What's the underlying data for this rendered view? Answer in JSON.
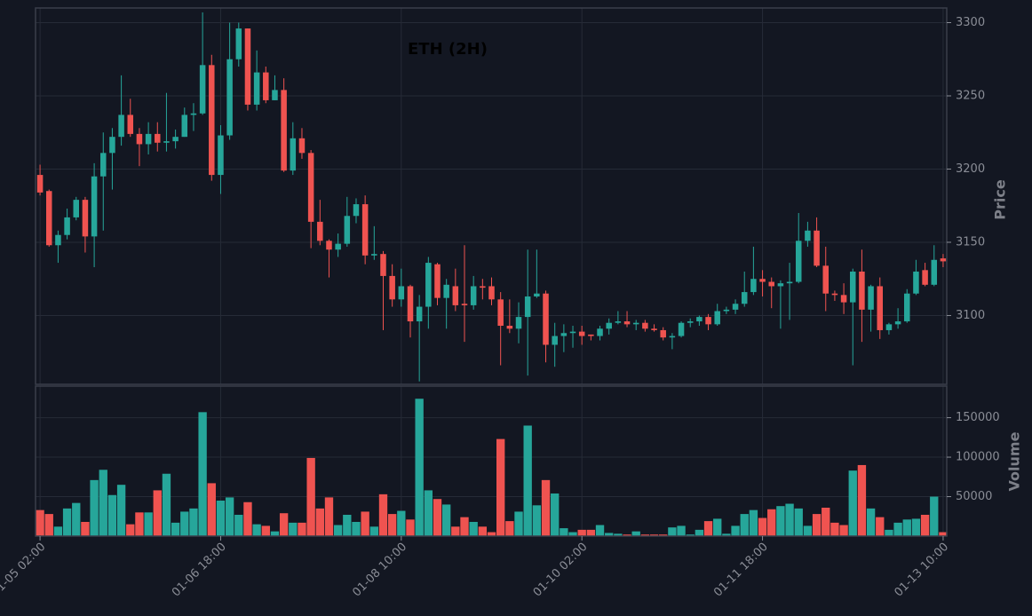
{
  "chart_data": [
    {
      "type": "candlestick",
      "title": "ETH (2H)",
      "ylabel": "Price",
      "up_color": "#26a69a",
      "down_color": "#ef5350",
      "open": [
        3196,
        3185,
        3148,
        3155,
        3167,
        3179,
        3154,
        3195,
        3211,
        3222,
        3237,
        3224,
        3217,
        3224,
        3218,
        3219,
        3222,
        3237,
        3238,
        3271,
        3196,
        3223,
        3275,
        3296,
        3244,
        3266,
        3247,
        3254,
        3199,
        3221,
        3211,
        3164,
        3151,
        3145,
        3149,
        3168,
        3176,
        3141,
        3142,
        3127,
        3111,
        3120,
        3096,
        3106,
        3135,
        3112,
        3120,
        3108,
        3107,
        3120,
        3120,
        3111,
        3093,
        3091,
        3099,
        3113,
        3115,
        3080,
        3086,
        3088,
        3089,
        3087,
        3086,
        3091,
        3095,
        3096,
        3094,
        3095,
        3091,
        3090,
        3085,
        3086,
        3095,
        3096,
        3099,
        3094,
        3103,
        3104,
        3108,
        3116,
        3125,
        3123,
        3120,
        3122,
        3123,
        3151,
        3158,
        3134,
        3115,
        3114,
        3109,
        3130,
        3104,
        3120,
        3090,
        3094,
        3096,
        3115,
        3131,
        3121,
        3139
      ],
      "high": [
        3203,
        3186,
        3158,
        3173,
        3181,
        3181,
        3204,
        3225,
        3228,
        3264,
        3248,
        3228,
        3232,
        3232,
        3252,
        3227,
        3242,
        3245,
        3307,
        3278,
        3230,
        3300,
        3300,
        3296,
        3281,
        3270,
        3264,
        3262,
        3232,
        3228,
        3213,
        3179,
        3152,
        3156,
        3181,
        3180,
        3182,
        3161,
        3144,
        3135,
        3132,
        3121,
        3114,
        3140,
        3136,
        3125,
        3132,
        3148,
        3127,
        3125,
        3126,
        3116,
        3111,
        3109,
        3145,
        3145,
        3117,
        3095,
        3094,
        3093,
        3093,
        3087,
        3093,
        3098,
        3103,
        3103,
        3097,
        3097,
        3094,
        3092,
        3088,
        3096,
        3098,
        3100,
        3101,
        3108,
        3106,
        3111,
        3130,
        3147,
        3131,
        3126,
        3124,
        3136,
        3170,
        3164,
        3167,
        3147,
        3117,
        3122,
        3132,
        3145,
        3121,
        3126,
        3095,
        3105,
        3118,
        3138,
        3136,
        3148,
        3142
      ],
      "low": [
        3182,
        3147,
        3136,
        3152,
        3165,
        3143,
        3133,
        3158,
        3186,
        3216,
        3222,
        3202,
        3210,
        3212,
        3212,
        3214,
        3222,
        3226,
        3237,
        3192,
        3183,
        3220,
        3270,
        3240,
        3240,
        3245,
        3247,
        3198,
        3196,
        3207,
        3146,
        3148,
        3126,
        3140,
        3147,
        3163,
        3135,
        3138,
        3090,
        3106,
        3106,
        3085,
        3055,
        3091,
        3107,
        3091,
        3103,
        3082,
        3104,
        3111,
        3107,
        3066,
        3088,
        3081,
        3059,
        3112,
        3068,
        3065,
        3075,
        3078,
        3080,
        3083,
        3083,
        3087,
        3094,
        3092,
        3090,
        3089,
        3089,
        3083,
        3077,
        3085,
        3092,
        3093,
        3090,
        3093,
        3101,
        3101,
        3106,
        3114,
        3113,
        3105,
        3091,
        3097,
        3122,
        3147,
        3133,
        3103,
        3110,
        3101,
        3066,
        3082,
        3089,
        3084,
        3087,
        3091,
        3095,
        3114,
        3120,
        3120,
        3133
      ],
      "close": [
        3184,
        3148,
        3155,
        3167,
        3179,
        3154,
        3195,
        3211,
        3222,
        3237,
        3224,
        3217,
        3224,
        3218,
        3219,
        3222,
        3237,
        3238,
        3271,
        3196,
        3223,
        3275,
        3296,
        3244,
        3266,
        3247,
        3254,
        3199,
        3221,
        3211,
        3164,
        3151,
        3145,
        3149,
        3168,
        3176,
        3141,
        3142,
        3127,
        3111,
        3120,
        3096,
        3106,
        3136,
        3112,
        3121,
        3107,
        3107,
        3120,
        3119,
        3111,
        3093,
        3091,
        3099,
        3113,
        3115,
        3080,
        3086,
        3088,
        3089,
        3086,
        3086,
        3091,
        3095,
        3096,
        3094,
        3095,
        3091,
        3090,
        3085,
        3086,
        3095,
        3096,
        3099,
        3094,
        3103,
        3104,
        3108,
        3116,
        3125,
        3123,
        3120,
        3122,
        3123,
        3151,
        3158,
        3134,
        3115,
        3114,
        3109,
        3130,
        3104,
        3120,
        3090,
        3094,
        3096,
        3115,
        3130,
        3121,
        3138,
        3137
      ],
      "xlim": [
        -0.5,
        100.4
      ],
      "ylim": [
        3053,
        3310
      ],
      "yticks": [
        3100,
        3150,
        3200,
        3250,
        3300
      ],
      "grid": true
    },
    {
      "type": "bar",
      "ylabel": "Volume",
      "values": [
        33000,
        28000,
        12000,
        35000,
        42000,
        18000,
        71000,
        84000,
        52000,
        65000,
        15000,
        30000,
        30000,
        58000,
        79000,
        17000,
        31000,
        35000,
        157000,
        67000,
        45000,
        49000,
        27000,
        43000,
        15000,
        13000,
        6000,
        29000,
        17000,
        17000,
        99000,
        35000,
        49000,
        14000,
        27000,
        18000,
        31000,
        12000,
        53000,
        28000,
        32000,
        21000,
        174000,
        58000,
        47000,
        40000,
        12000,
        24000,
        18000,
        12000,
        5000,
        123000,
        19000,
        31000,
        140000,
        39000,
        71000,
        54000,
        10000,
        5000,
        8000,
        8000,
        14000,
        4000,
        3000,
        2000,
        6000,
        2000,
        2000,
        2000,
        11000,
        13000,
        2000,
        8000,
        19000,
        22000,
        3000,
        13000,
        28000,
        33000,
        23000,
        34000,
        38000,
        41000,
        35000,
        13000,
        28000,
        36000,
        17000,
        14000,
        83000,
        90000,
        35000,
        24000,
        8000,
        17000,
        21000,
        22000,
        27000,
        50000,
        5000
      ],
      "xlim": [
        -0.5,
        100.4
      ],
      "ylim": [
        0,
        190000
      ],
      "yticks": [
        50000,
        100000,
        150000
      ],
      "grid": true,
      "xticks": [
        {
          "value": 0,
          "label": "01-05 02:00"
        },
        {
          "value": 20,
          "label": "01-06 18:00"
        },
        {
          "value": 40,
          "label": "01-08 10:00"
        },
        {
          "value": 60,
          "label": "01-10 02:00"
        },
        {
          "value": 80,
          "label": "01-11 18:00"
        },
        {
          "value": 100,
          "label": "01-13 10:00"
        }
      ]
    }
  ]
}
